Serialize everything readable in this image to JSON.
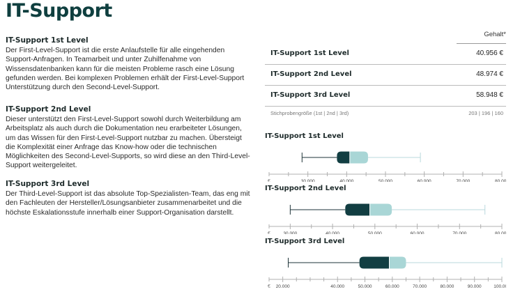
{
  "title": "IT-Support",
  "sections": [
    {
      "heading": "IT-Support 1st Level",
      "text": "Der First-Level-Support ist die erste Anlaufstelle für alle eingehenden Support-Anfragen. In Teamarbeit und unter Zuhilfenahme von Wissensdatenbanken kann für die meisten Probleme rasch eine Lösung gefunden werden. Bei komplexen Problemen erhält der First-Level-Support Unterstützung durch den Second-Level-Support."
    },
    {
      "heading": "IT-Support 2nd Level",
      "text": "Dieser unterstützt den First-Level-Support sowohl durch Weiterbildung am Arbeitsplatz als auch durch die Dokumentation neu erarbeiteter Lösungen, um das Wissen für den First-Level-Support nutzbar zu machen. Übersteigt die Komplexität einer Anfrage das Know-how oder die technischen Möglichkeiten des Second-Level-Supports, so wird diese an den Third-Level-Support weitergeleitet."
    },
    {
      "heading": "IT-Support 3rd Level",
      "text": "Der Third-Level-Support ist das absolute Top-Spezialisten-Team, das eng mit den Fachleuten der Hersteller/Lösungsanbieter zusammenarbeitet und die höchste Eskalationsstufe innerhalb einer Support-Organisation darstellt."
    }
  ],
  "salary_table": {
    "header": "Gehalt*",
    "rows": [
      {
        "label": "IT-Support 1st Level",
        "value": "40.956 €"
      },
      {
        "label": "IT-Support 2nd Level",
        "value": "48.974 €"
      },
      {
        "label": "IT-Support 3rd Level",
        "value": "58.948 €"
      }
    ],
    "sample_label": "Stichprobengröße (1st | 2nd | 3rd)",
    "sample_values": "203 | 196 | 160"
  },
  "colors": {
    "dark": "#123e42",
    "light": "#a9d6d6",
    "whisker": "#b9d8dc",
    "whisker_left": "#1e3338",
    "axis": "#b0b0b0"
  },
  "chart_data": [
    {
      "type": "boxplot",
      "title": "IT-Support 1st Level",
      "unit": "€",
      "xlim": [
        20000,
        80000
      ],
      "ticks": [
        "30.000",
        "40.000",
        "50.000",
        "60.000",
        "70.000",
        "80.000"
      ],
      "tick_values": [
        30000,
        40000,
        50000,
        60000,
        70000,
        80000
      ],
      "min": 28500,
      "q1": 37500,
      "median": 40800,
      "q3": 45500,
      "max": 59000
    },
    {
      "type": "boxplot",
      "title": "IT-Support 2nd Level",
      "unit": "€",
      "xlim": [
        25000,
        80000
      ],
      "ticks": [
        "30.000",
        "40.000",
        "50.000",
        "60.000",
        "70.000",
        "80.000"
      ],
      "tick_values": [
        30000,
        40000,
        50000,
        60000,
        70000,
        80000
      ],
      "min": 30000,
      "q1": 43000,
      "median": 48800,
      "q3": 54000,
      "max": 76000
    },
    {
      "type": "boxplot",
      "title": "IT-Support 3rd Level",
      "unit": "€",
      "xlim": [
        15000,
        100000
      ],
      "ticks": [
        "20.000",
        "40.000",
        "50.000",
        "60.000",
        "70.000",
        "80.000",
        "90.000",
        "100.000"
      ],
      "tick_values": [
        20000,
        40000,
        50000,
        60000,
        70000,
        80000,
        90000,
        100000
      ],
      "minor_ticks": [
        30000
      ],
      "min": 22000,
      "q1": 48000,
      "median": 58900,
      "q3": 65000,
      "max": 100000
    }
  ]
}
